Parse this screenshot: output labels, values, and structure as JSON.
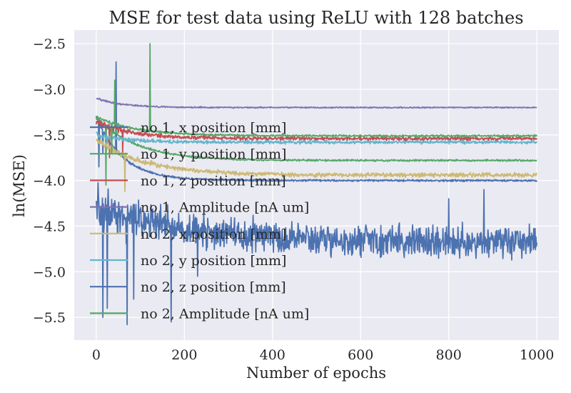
{
  "chart_data": {
    "type": "line",
    "title": "MSE for test data using ReLU with 128 batches",
    "xlabel": "Number of epochs",
    "ylabel": "ln(MSE)",
    "xlim": [
      -50,
      1050
    ],
    "ylim": [
      -5.75,
      -2.35
    ],
    "xticks": [
      0,
      200,
      400,
      600,
      800,
      1000
    ],
    "xtick_labels": [
      "0",
      "200",
      "400",
      "600",
      "800",
      "1000"
    ],
    "yticks": [
      -2.5,
      -3.0,
      -3.5,
      -4.0,
      -4.5,
      -5.0,
      -5.5
    ],
    "ytick_labels": [
      "−2.5",
      "−3.0",
      "−3.5",
      "−4.0",
      "−4.5",
      "−5.0",
      "−5.5"
    ],
    "grid": true,
    "legend_position": "left, over the plot",
    "background": "#eaeaf2",
    "series": [
      {
        "name": "no 1, x position [mm]",
        "color": "#4c72b0",
        "start": -3.3,
        "plateau": -4.0,
        "tau": 60,
        "noise": 0.015,
        "spikes": [
          [
            45,
            -2.7
          ],
          [
            6,
            -3.85
          ],
          [
            15,
            -3.7
          ]
        ]
      },
      {
        "name": "no 1, y position [mm]",
        "color": "#55a868",
        "start": -3.3,
        "plateau": -3.78,
        "tau": 90,
        "noise": 0.015,
        "spikes": [
          [
            22,
            -4.05
          ],
          [
            45,
            -3.4
          ]
        ]
      },
      {
        "name": "no 1, z position [mm]",
        "color": "#c44e52",
        "start": -3.35,
        "plateau": -3.54,
        "tau": 80,
        "noise": 0.03,
        "spikes": [
          [
            30,
            -3.75
          ],
          [
            60,
            -3.7
          ]
        ]
      },
      {
        "name": "no 1, Amplitude [nA um]",
        "color": "#8172b2",
        "start": -3.1,
        "plateau": -3.2,
        "tau": 60,
        "noise": 0.01,
        "spikes": []
      },
      {
        "name": "no 2, x position [mm]",
        "color": "#ccb974",
        "start": -3.55,
        "plateau": -3.94,
        "tau": 110,
        "noise": 0.035,
        "spikes": [
          [
            65,
            -4.12
          ],
          [
            130,
            -3.8
          ]
        ]
      },
      {
        "name": "no 2, y position [mm]",
        "color": "#64b5cd",
        "start": -3.5,
        "plateau": -3.58,
        "tau": 70,
        "noise": 0.025,
        "spikes": [
          [
            25,
            -3.6
          ]
        ]
      },
      {
        "name": "no 2, z position [mm]",
        "color": "#4c72b0",
        "start": -4.3,
        "plateau": -4.68,
        "tau": 220,
        "noise": 0.24,
        "spikes": [
          [
            15,
            -5.5
          ],
          [
            25,
            -5.4
          ],
          [
            70,
            -5.58
          ],
          [
            85,
            -5.3
          ],
          [
            170,
            -5.55
          ],
          [
            230,
            -5.05
          ],
          [
            800,
            -4.2
          ],
          [
            880,
            -4.1
          ]
        ]
      },
      {
        "name": "no 2, Amplitude [nA um]",
        "color": "#55a868",
        "start": -3.3,
        "plateau": -3.51,
        "tau": 90,
        "noise": 0.015,
        "spikes": [
          [
            122,
            -2.5
          ],
          [
            42,
            -2.9
          ],
          [
            35,
            -3.7
          ]
        ]
      }
    ]
  }
}
